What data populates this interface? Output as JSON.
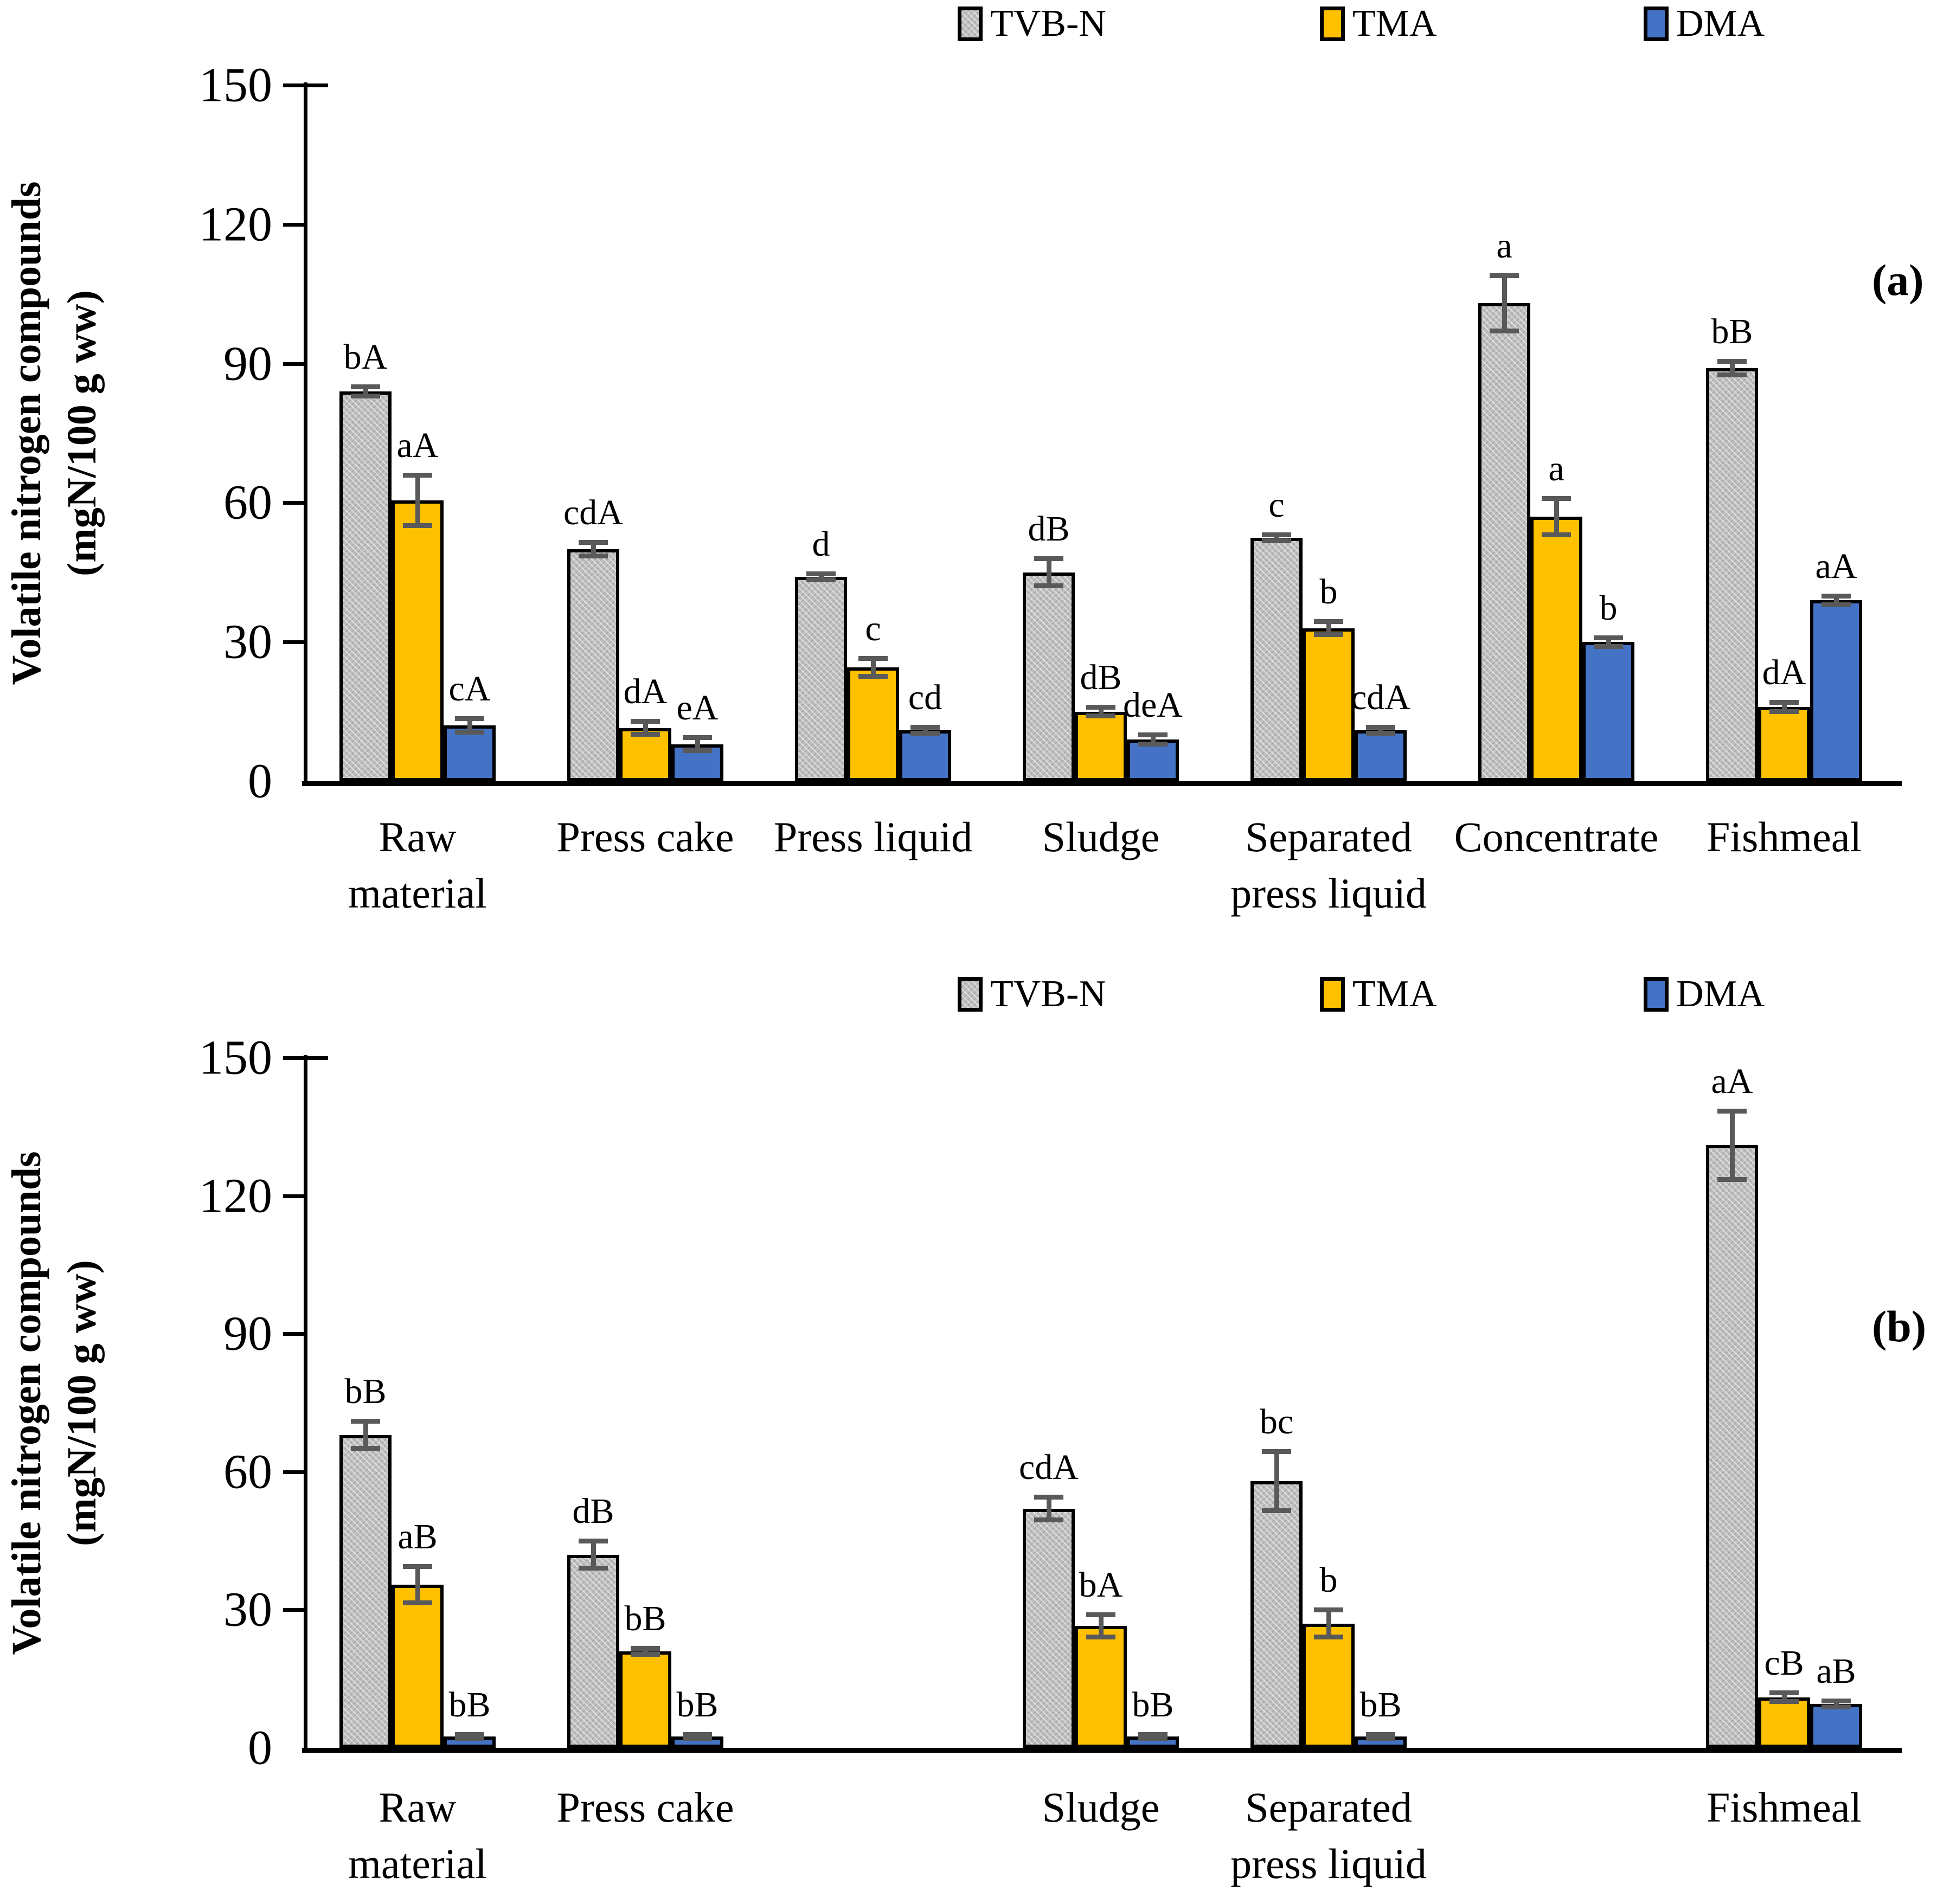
{
  "figure": {
    "background": "#ffffff",
    "axis_color": "#000000",
    "error_bar_color": "#595959",
    "series_colors": {
      "TVB-N": "#bfbfbf",
      "TMA": "#ffc000",
      "DMA": "#4472c4"
    },
    "panels": [
      {
        "letter": "(a)",
        "y_axis_title_lines": [
          "Volatile nitrogen compounds",
          "(mgN/100 g ww)"
        ]
      },
      {
        "letter": "(b)",
        "y_axis_title_lines": [
          "Volatile nitrogen compounds",
          "(mgN/100 g ww)"
        ]
      }
    ]
  },
  "chart_data": [
    {
      "type": "bar",
      "panel_label": "(a)",
      "title": "",
      "xlabel": "",
      "ylabel": "Volatile nitrogen compounds (mgN/100 g ww)",
      "ylim": [
        0,
        150
      ],
      "yticks": [
        0,
        30,
        60,
        90,
        120,
        150
      ],
      "grid": false,
      "legend_position": "top",
      "legend": [
        "TVB-N",
        "TMA",
        "DMA"
      ],
      "categories": [
        "Raw material",
        "Press cake",
        "Press liquid",
        "Sludge",
        "Separated press liquid",
        "Concentrate",
        "Fishmeal"
      ],
      "categories_wrapped": [
        [
          "Raw",
          "material"
        ],
        [
          "Press cake"
        ],
        [
          "Press liquid"
        ],
        [
          "Sludge"
        ],
        [
          "Separated",
          "press liquid"
        ],
        [
          "Concentrate"
        ],
        [
          "Fishmeal"
        ]
      ],
      "series": [
        {
          "name": "TVB-N",
          "color": "#bfbfbf",
          "values": [
            84,
            50,
            44,
            45,
            52.5,
            103,
            89
          ],
          "errors": [
            1,
            1.5,
            0.7,
            3,
            0.7,
            6,
            1.5
          ],
          "sig_labels": [
            "bA",
            "cdA",
            "d",
            "dB",
            "c",
            "a",
            "bB"
          ]
        },
        {
          "name": "TMA",
          "color": "#ffc000",
          "values": [
            60.5,
            11.5,
            24.5,
            15,
            33,
            57,
            16
          ],
          "errors": [
            5.5,
            1.5,
            2,
            1,
            1.5,
            4,
            1
          ],
          "sig_labels": [
            "aA",
            "dA",
            "c",
            "dB",
            "b",
            "a",
            "dA"
          ]
        },
        {
          "name": "DMA",
          "color": "#4472c4",
          "values": [
            12,
            8,
            11,
            9,
            11,
            30,
            39
          ],
          "errors": [
            1.5,
            1.5,
            0.7,
            1,
            0.7,
            1,
            1
          ],
          "sig_labels": [
            "cA",
            "eA",
            "cd",
            "deA",
            "cdA",
            "b",
            "aA"
          ]
        }
      ]
    },
    {
      "type": "bar",
      "panel_label": "(b)",
      "title": "",
      "xlabel": "",
      "ylabel": "Volatile nitrogen compounds (mgN/100 g ww)",
      "ylim": [
        0,
        150
      ],
      "yticks": [
        0,
        30,
        60,
        90,
        120,
        150
      ],
      "grid": false,
      "legend_position": "top",
      "legend": [
        "TVB-N",
        "TMA",
        "DMA"
      ],
      "categories": [
        "Raw material",
        "Press cake",
        null,
        "Sludge",
        "Separated press liquid",
        null,
        "Fishmeal"
      ],
      "categories_wrapped": [
        [
          "Raw",
          "material"
        ],
        [
          "Press cake"
        ],
        null,
        [
          "Sludge"
        ],
        [
          "Separated",
          "press liquid"
        ],
        null,
        [
          "Fishmeal"
        ]
      ],
      "series": [
        {
          "name": "TVB-N",
          "color": "#bfbfbf",
          "values": [
            68,
            42,
            null,
            52,
            58,
            null,
            131
          ],
          "errors": [
            3,
            3,
            null,
            2.5,
            6.5,
            null,
            7.5
          ],
          "sig_labels": [
            "bB",
            "dB",
            "",
            "cdA",
            "bc",
            "",
            "aA"
          ]
        },
        {
          "name": "TMA",
          "color": "#ffc000",
          "values": [
            35.5,
            21,
            null,
            26.5,
            27,
            null,
            11
          ],
          "errors": [
            4,
            0.7,
            null,
            2.5,
            3,
            null,
            1
          ],
          "sig_labels": [
            "aB",
            "bB",
            "",
            "bA",
            "b",
            "",
            "cB"
          ]
        },
        {
          "name": "DMA",
          "color": "#4472c4",
          "values": [
            2.5,
            2.5,
            null,
            2.5,
            2.5,
            null,
            9.5
          ],
          "errors": [
            0.5,
            0.5,
            null,
            0.5,
            0.5,
            null,
            0.7
          ],
          "sig_labels": [
            "bB",
            "bB",
            "",
            "bB",
            "bB",
            "",
            "aB"
          ]
        }
      ]
    }
  ]
}
